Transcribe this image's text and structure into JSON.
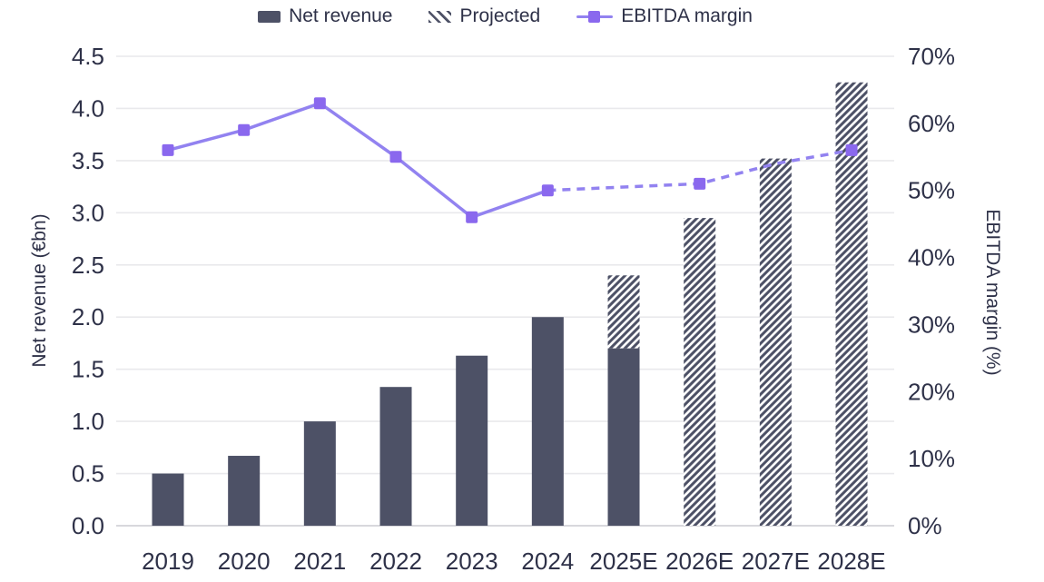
{
  "chart_data": {
    "type": "bar",
    "subtype": "combo-bar-line-dual-axis",
    "categories": [
      "2019",
      "2020",
      "2021",
      "2022",
      "2023",
      "2024",
      "2025E",
      "2026E",
      "2027E",
      "2028E"
    ],
    "series": [
      {
        "name": "Net revenue",
        "type": "bar",
        "axis": "left",
        "values": [
          0.5,
          0.67,
          1.0,
          1.33,
          1.63,
          2.0,
          1.7,
          null,
          null,
          null
        ]
      },
      {
        "name": "Projected",
        "type": "bar-hatched",
        "axis": "left",
        "totals": [
          null,
          null,
          null,
          null,
          null,
          null,
          2.4,
          2.95,
          3.52,
          4.25
        ]
      },
      {
        "name": "EBITDA margin",
        "type": "line",
        "axis": "right",
        "unit": "%",
        "values": [
          56,
          59,
          63,
          55,
          46,
          50,
          50.5,
          51,
          54,
          56
        ],
        "dashed_from_index": 5,
        "markers_visible": [
          true,
          true,
          true,
          true,
          true,
          true,
          false,
          true,
          false,
          true
        ]
      }
    ],
    "left_axis": {
      "title": "Net revenue (€bn)",
      "min": 0,
      "max": 4.5,
      "ticks": [
        "0.0",
        "0.5",
        "1.0",
        "1.5",
        "2.0",
        "2.5",
        "3.0",
        "3.5",
        "4.0",
        "4.5"
      ]
    },
    "right_axis": {
      "title": "EBITDA margin (%)",
      "min": 0,
      "max": 70,
      "ticks": [
        "0%",
        "10%",
        "20%",
        "30%",
        "40%",
        "50%",
        "60%",
        "70%"
      ]
    },
    "grid": true,
    "legend_position": "top",
    "colors": {
      "bar": "#4d5166",
      "line": "#9282f0",
      "marker": "#8a68ee",
      "text": "#2e3148",
      "grid": "#e9e9ec",
      "baseline": "#d8d8dc",
      "background": "#ffffff"
    }
  }
}
